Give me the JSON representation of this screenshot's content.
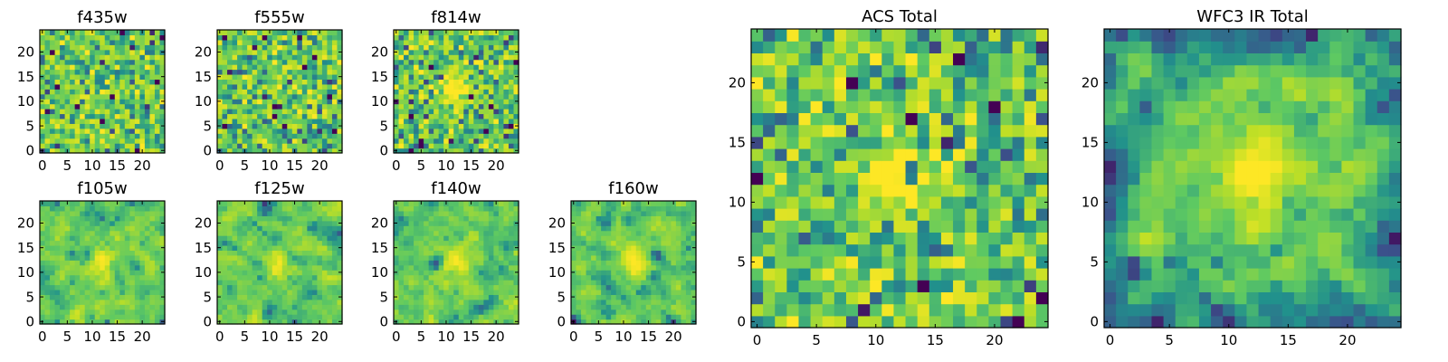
{
  "figure": {
    "description_free": true,
    "colormap": [
      "#440154",
      "#3b528b",
      "#21918c",
      "#5ec962",
      "#bddf26",
      "#fde725"
    ]
  },
  "chart_data": [
    {
      "type": "heatmap",
      "title": "f435w",
      "grid": [
        25,
        25
      ],
      "seed": 11,
      "xticks": [
        0,
        5,
        10,
        15,
        20
      ],
      "yticks": [
        0,
        5,
        10,
        15,
        20
      ],
      "source_peak": 0.0,
      "smooth": 0.0,
      "low_bias": 0.0
    },
    {
      "type": "heatmap",
      "title": "f555w",
      "grid": [
        25,
        25
      ],
      "seed": 23,
      "xticks": [
        0,
        5,
        10,
        15,
        20
      ],
      "yticks": [
        0,
        5,
        10,
        15,
        20
      ],
      "source_peak": 0.15,
      "smooth": 0.0,
      "low_bias": 0.0
    },
    {
      "type": "heatmap",
      "title": "f814w",
      "grid": [
        25,
        25
      ],
      "seed": 37,
      "xticks": [
        0,
        5,
        10,
        15,
        20
      ],
      "yticks": [
        0,
        5,
        10,
        15,
        20
      ],
      "source_peak": 0.55,
      "smooth": 0.0,
      "low_bias": 0.0
    },
    {
      "type": "heatmap",
      "title": "f105w",
      "grid": [
        25,
        25
      ],
      "seed": 41,
      "xticks": [
        0,
        5,
        10,
        15,
        20
      ],
      "yticks": [
        0,
        5,
        10,
        15,
        20
      ],
      "source_peak": 0.35,
      "smooth": 0.6,
      "low_bias": 0.0
    },
    {
      "type": "heatmap",
      "title": "f125w",
      "grid": [
        25,
        25
      ],
      "seed": 53,
      "xticks": [
        0,
        5,
        10,
        15,
        20
      ],
      "yticks": [
        0,
        5,
        10,
        15,
        20
      ],
      "source_peak": 0.3,
      "smooth": 0.6,
      "low_bias": 0.0
    },
    {
      "type": "heatmap",
      "title": "f140w",
      "grid": [
        25,
        25
      ],
      "seed": 67,
      "xticks": [
        0,
        5,
        10,
        15,
        20
      ],
      "yticks": [
        0,
        5,
        10,
        15,
        20
      ],
      "source_peak": 0.35,
      "smooth": 0.6,
      "low_bias": 0.0
    },
    {
      "type": "heatmap",
      "title": "f160w",
      "grid": [
        25,
        25
      ],
      "seed": 79,
      "xticks": [
        0,
        5,
        10,
        15,
        20
      ],
      "yticks": [
        0,
        5,
        10,
        15,
        20
      ],
      "source_peak": 0.45,
      "smooth": 0.6,
      "low_bias": 0.0
    },
    {
      "type": "heatmap",
      "title": "ACS Total",
      "grid": [
        25,
        25
      ],
      "seed": 97,
      "xticks": [
        0,
        5,
        10,
        15,
        20
      ],
      "yticks": [
        0,
        5,
        10,
        15,
        20
      ],
      "source_peak": 0.45,
      "smooth": 0.0,
      "low_bias": 0.0
    },
    {
      "type": "heatmap",
      "title": "WFC3 IR Total",
      "grid": [
        25,
        25
      ],
      "seed": 131,
      "xticks": [
        0,
        5,
        10,
        15,
        20
      ],
      "yticks": [
        0,
        5,
        10,
        15,
        20
      ],
      "source_peak": 0.55,
      "smooth": 0.5,
      "low_bias": 0.25
    }
  ]
}
